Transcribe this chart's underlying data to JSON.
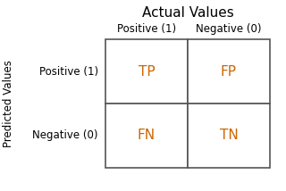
{
  "title": "Actual Values",
  "ylabel": "Predicted Values",
  "col_labels": [
    "Positive (1)",
    "Negative (0)"
  ],
  "row_labels": [
    "Positive (1)",
    "Negative (0)"
  ],
  "cell_texts": [
    [
      "TP",
      "FP"
    ],
    [
      "FN",
      "TN"
    ]
  ],
  "cell_text_color": "#cc6600",
  "label_color": "#000000",
  "grid_color": "#555555",
  "background_color": "#ffffff",
  "title_fontsize": 11,
  "col_label_fontsize": 8.5,
  "row_label_fontsize": 8.5,
  "cell_fontsize": 11,
  "ylabel_fontsize": 8.5
}
